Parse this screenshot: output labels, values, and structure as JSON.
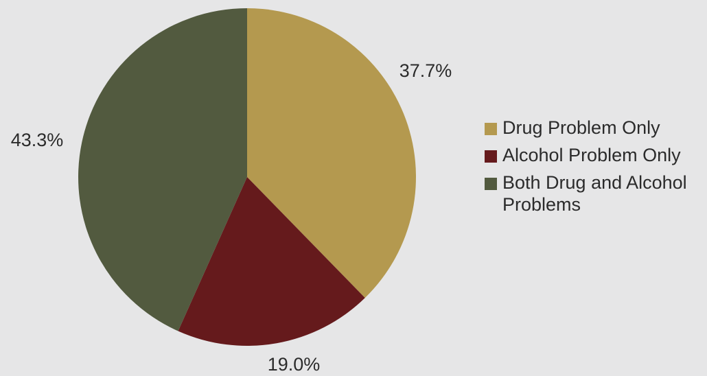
{
  "chart_data": {
    "type": "pie",
    "title": "",
    "start_angle_deg": 0,
    "direction": "clockwise",
    "slices": [
      {
        "label": "Drug Problem Only",
        "value": 37.7,
        "display": "37.7%",
        "color": "#b4994f"
      },
      {
        "label": "Alcohol Problem Only",
        "value": 19.0,
        "display": "19.0%",
        "color": "#651a1c"
      },
      {
        "label": "Both Drug and Alcohol Problems",
        "value": 43.3,
        "display": "43.3%",
        "color": "#525a3f"
      }
    ],
    "legend_position": "right",
    "background": "#e6e6e7"
  }
}
